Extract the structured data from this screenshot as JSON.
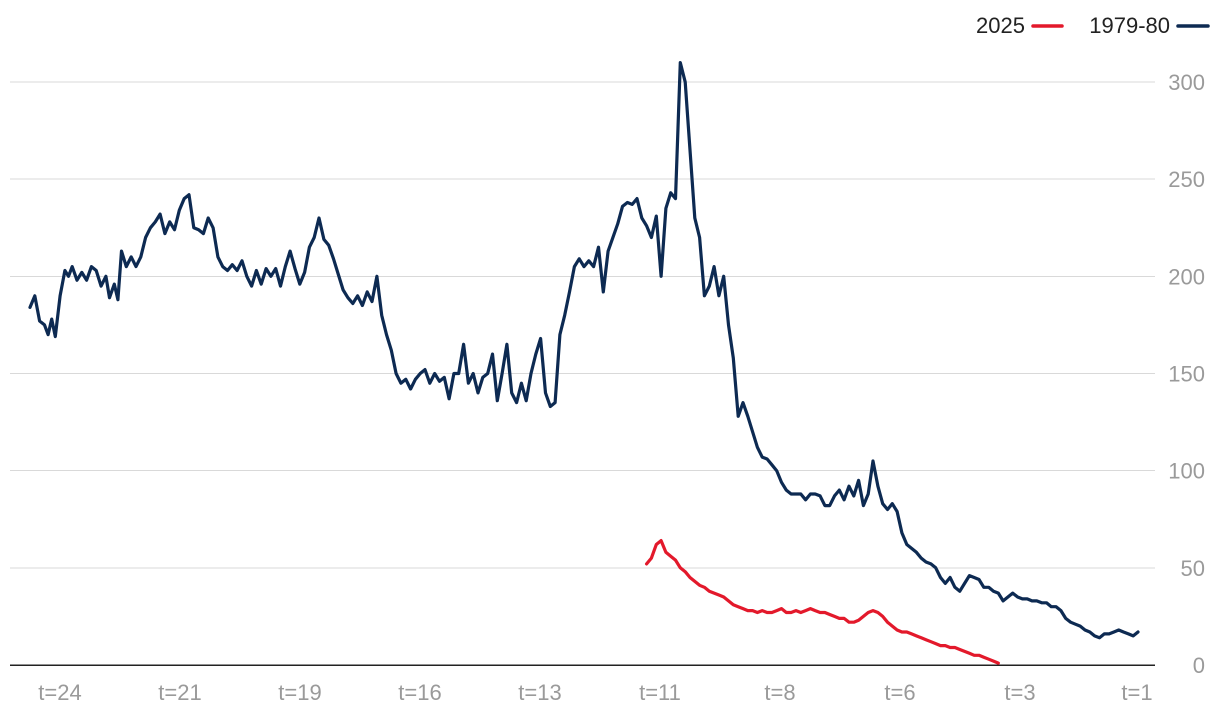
{
  "chart_data": {
    "type": "line",
    "title": "",
    "xlabel": "",
    "ylabel": "",
    "ylim": [
      0,
      300
    ],
    "yticks": [
      0,
      50,
      100,
      150,
      200,
      250,
      300
    ],
    "xticks": [
      "t=24",
      "t=21",
      "t=19",
      "t=16",
      "t=13",
      "t=11",
      "t=8",
      "t=6",
      "t=3",
      "t=1"
    ],
    "grid": "horizontal",
    "legend_position": "top-right",
    "x_note": "x values are indices from 0 (t=24) to 92 (t=1)",
    "series": [
      {
        "name": "1979-80",
        "color": "#0d2a52",
        "points": [
          [
            0,
            184
          ],
          [
            0.4,
            190
          ],
          [
            0.8,
            177
          ],
          [
            1.2,
            175
          ],
          [
            1.5,
            170
          ],
          [
            1.8,
            178
          ],
          [
            2.1,
            169
          ],
          [
            2.5,
            190
          ],
          [
            2.9,
            203
          ],
          [
            3.2,
            200
          ],
          [
            3.5,
            205
          ],
          [
            3.9,
            198
          ],
          [
            4.3,
            202
          ],
          [
            4.7,
            198
          ],
          [
            5.1,
            205
          ],
          [
            5.5,
            203
          ],
          [
            5.9,
            195
          ],
          [
            6.3,
            200
          ],
          [
            6.6,
            189
          ],
          [
            7.0,
            196
          ],
          [
            7.3,
            188
          ],
          [
            7.6,
            213
          ],
          [
            8.0,
            205
          ],
          [
            8.4,
            210
          ],
          [
            8.8,
            205
          ],
          [
            9.2,
            210
          ],
          [
            9.6,
            220
          ],
          [
            10.0,
            225
          ],
          [
            10.4,
            228
          ],
          [
            10.8,
            232
          ],
          [
            11.2,
            222
          ],
          [
            11.6,
            228
          ],
          [
            12.0,
            224
          ],
          [
            12.4,
            234
          ],
          [
            12.8,
            240
          ],
          [
            13.2,
            242
          ],
          [
            13.6,
            225
          ],
          [
            14.0,
            224
          ],
          [
            14.4,
            222
          ],
          [
            14.8,
            230
          ],
          [
            15.2,
            225
          ],
          [
            15.6,
            210
          ],
          [
            16.0,
            205
          ],
          [
            16.4,
            203
          ],
          [
            16.8,
            206
          ],
          [
            17.2,
            203
          ],
          [
            17.6,
            208
          ],
          [
            18.0,
            200
          ],
          [
            18.4,
            195
          ],
          [
            18.8,
            203
          ],
          [
            19.2,
            196
          ],
          [
            19.6,
            204
          ],
          [
            20.0,
            200
          ],
          [
            20.4,
            204
          ],
          [
            20.8,
            195
          ],
          [
            21.2,
            205
          ],
          [
            21.6,
            213
          ],
          [
            22.0,
            204
          ],
          [
            22.4,
            196
          ],
          [
            22.8,
            202
          ],
          [
            23.2,
            215
          ],
          [
            23.6,
            220
          ],
          [
            24.0,
            230
          ],
          [
            24.4,
            219
          ],
          [
            24.8,
            216
          ],
          [
            25.2,
            209
          ],
          [
            25.6,
            201
          ],
          [
            26.0,
            193
          ],
          [
            26.4,
            189
          ],
          [
            26.8,
            186
          ],
          [
            27.2,
            190
          ],
          [
            27.6,
            185
          ],
          [
            28.0,
            192
          ],
          [
            28.4,
            187
          ],
          [
            28.8,
            200
          ],
          [
            29.2,
            180
          ],
          [
            29.6,
            170
          ],
          [
            30.0,
            162
          ],
          [
            30.4,
            150
          ],
          [
            30.8,
            145
          ],
          [
            31.2,
            147
          ],
          [
            31.6,
            142
          ],
          [
            32.0,
            147
          ],
          [
            32.4,
            150
          ],
          [
            32.8,
            152
          ],
          [
            33.2,
            145
          ],
          [
            33.6,
            150
          ],
          [
            34.0,
            146
          ],
          [
            34.4,
            148
          ],
          [
            34.8,
            137
          ],
          [
            35.2,
            150
          ],
          [
            35.6,
            150
          ],
          [
            36.0,
            165
          ],
          [
            36.4,
            145
          ],
          [
            36.8,
            150
          ],
          [
            37.2,
            140
          ],
          [
            37.6,
            148
          ],
          [
            38.0,
            150
          ],
          [
            38.4,
            160
          ],
          [
            38.8,
            136
          ],
          [
            39.2,
            150
          ],
          [
            39.6,
            165
          ],
          [
            40.0,
            140
          ],
          [
            40.4,
            135
          ],
          [
            40.8,
            145
          ],
          [
            41.2,
            136
          ],
          [
            41.6,
            150
          ],
          [
            42.0,
            160
          ],
          [
            42.4,
            168
          ],
          [
            42.8,
            140
          ],
          [
            43.2,
            133
          ],
          [
            43.6,
            135
          ],
          [
            44.0,
            170
          ],
          [
            44.4,
            180
          ],
          [
            44.8,
            192
          ],
          [
            45.2,
            205
          ],
          [
            45.6,
            209
          ],
          [
            46.0,
            205
          ],
          [
            46.4,
            208
          ],
          [
            46.8,
            205
          ],
          [
            47.2,
            215
          ],
          [
            47.6,
            192
          ],
          [
            48.0,
            213
          ],
          [
            48.4,
            220
          ],
          [
            48.8,
            227
          ],
          [
            49.2,
            236
          ],
          [
            49.6,
            238
          ],
          [
            50.0,
            237
          ],
          [
            50.4,
            240
          ],
          [
            50.8,
            230
          ],
          [
            51.2,
            226
          ],
          [
            51.6,
            220
          ],
          [
            52.0,
            231
          ],
          [
            52.4,
            200
          ],
          [
            52.8,
            235
          ],
          [
            53.2,
            243
          ],
          [
            53.6,
            240
          ],
          [
            54.0,
            310
          ],
          [
            54.4,
            300
          ],
          [
            54.8,
            265
          ],
          [
            55.2,
            230
          ],
          [
            55.6,
            220
          ],
          [
            56.0,
            190
          ],
          [
            56.4,
            195
          ],
          [
            56.8,
            205
          ],
          [
            57.2,
            190
          ],
          [
            57.6,
            200
          ],
          [
            58.0,
            175
          ],
          [
            58.4,
            158
          ],
          [
            58.8,
            128
          ],
          [
            59.2,
            135
          ],
          [
            59.6,
            128
          ],
          [
            60.0,
            120
          ],
          [
            60.4,
            112
          ],
          [
            60.8,
            107
          ],
          [
            61.2,
            106
          ],
          [
            61.6,
            103
          ],
          [
            62.0,
            100
          ],
          [
            62.4,
            94
          ],
          [
            62.8,
            90
          ],
          [
            63.2,
            88
          ],
          [
            63.6,
            88
          ],
          [
            64.0,
            88
          ],
          [
            64.4,
            85
          ],
          [
            64.8,
            88
          ],
          [
            65.2,
            88
          ],
          [
            65.6,
            87
          ],
          [
            66.0,
            82
          ],
          [
            66.4,
            82
          ],
          [
            66.8,
            87
          ],
          [
            67.2,
            90
          ],
          [
            67.6,
            85
          ],
          [
            68.0,
            92
          ],
          [
            68.4,
            87
          ],
          [
            68.8,
            95
          ],
          [
            69.2,
            82
          ],
          [
            69.6,
            88
          ],
          [
            70.0,
            105
          ],
          [
            70.4,
            92
          ],
          [
            70.8,
            83
          ],
          [
            71.2,
            80
          ],
          [
            71.6,
            83
          ],
          [
            72.0,
            79
          ],
          [
            72.4,
            68
          ],
          [
            72.8,
            62
          ],
          [
            73.2,
            60
          ],
          [
            73.6,
            58
          ],
          [
            74.0,
            55
          ],
          [
            74.4,
            53
          ],
          [
            74.8,
            52
          ],
          [
            75.2,
            50
          ],
          [
            75.6,
            45
          ],
          [
            76.0,
            42
          ],
          [
            76.4,
            45
          ],
          [
            76.8,
            40
          ],
          [
            77.2,
            38
          ],
          [
            77.6,
            42
          ],
          [
            78.0,
            46
          ],
          [
            78.4,
            45
          ],
          [
            78.8,
            44
          ],
          [
            79.2,
            40
          ],
          [
            79.6,
            40
          ],
          [
            80.0,
            38
          ],
          [
            80.4,
            37
          ],
          [
            80.8,
            33
          ],
          [
            81.2,
            35
          ],
          [
            81.6,
            37
          ],
          [
            82.0,
            35
          ],
          [
            82.4,
            34
          ],
          [
            82.8,
            34
          ],
          [
            83.2,
            33
          ],
          [
            83.6,
            33
          ],
          [
            84.0,
            32
          ],
          [
            84.4,
            32
          ],
          [
            84.8,
            30
          ],
          [
            85.2,
            30
          ],
          [
            85.6,
            28
          ],
          [
            86.0,
            24
          ],
          [
            86.4,
            22
          ],
          [
            86.8,
            21
          ],
          [
            87.2,
            20
          ],
          [
            87.6,
            18
          ],
          [
            88.0,
            17
          ],
          [
            88.4,
            15
          ],
          [
            88.8,
            14
          ],
          [
            89.2,
            16
          ],
          [
            89.6,
            16
          ],
          [
            90.0,
            17
          ],
          [
            90.4,
            18
          ],
          [
            90.8,
            17
          ],
          [
            91.2,
            16
          ],
          [
            91.6,
            15
          ],
          [
            92.0,
            17
          ]
        ]
      },
      {
        "name": "2025",
        "color": "#e3192b",
        "points": [
          [
            51.2,
            52
          ],
          [
            51.6,
            55
          ],
          [
            52.0,
            62
          ],
          [
            52.4,
            64
          ],
          [
            52.8,
            58
          ],
          [
            53.2,
            56
          ],
          [
            53.6,
            54
          ],
          [
            54.0,
            50
          ],
          [
            54.4,
            48
          ],
          [
            54.8,
            45
          ],
          [
            55.2,
            43
          ],
          [
            55.6,
            41
          ],
          [
            56.0,
            40
          ],
          [
            56.4,
            38
          ],
          [
            56.8,
            37
          ],
          [
            57.2,
            36
          ],
          [
            57.6,
            35
          ],
          [
            58.0,
            33
          ],
          [
            58.4,
            31
          ],
          [
            58.8,
            30
          ],
          [
            59.2,
            29
          ],
          [
            59.6,
            28
          ],
          [
            60.0,
            28
          ],
          [
            60.4,
            27
          ],
          [
            60.8,
            28
          ],
          [
            61.2,
            27
          ],
          [
            61.6,
            27
          ],
          [
            62.0,
            28
          ],
          [
            62.4,
            29
          ],
          [
            62.8,
            27
          ],
          [
            63.2,
            27
          ],
          [
            63.6,
            28
          ],
          [
            64.0,
            27
          ],
          [
            64.4,
            28
          ],
          [
            64.8,
            29
          ],
          [
            65.2,
            28
          ],
          [
            65.6,
            27
          ],
          [
            66.0,
            27
          ],
          [
            66.4,
            26
          ],
          [
            66.8,
            25
          ],
          [
            67.2,
            24
          ],
          [
            67.6,
            24
          ],
          [
            68.0,
            22
          ],
          [
            68.4,
            22
          ],
          [
            68.8,
            23
          ],
          [
            69.2,
            25
          ],
          [
            69.6,
            27
          ],
          [
            70.0,
            28
          ],
          [
            70.4,
            27
          ],
          [
            70.8,
            25
          ],
          [
            71.2,
            22
          ],
          [
            71.6,
            20
          ],
          [
            72.0,
            18
          ],
          [
            72.4,
            17
          ],
          [
            72.8,
            17
          ],
          [
            73.2,
            16
          ],
          [
            73.6,
            15
          ],
          [
            74.0,
            14
          ],
          [
            74.4,
            13
          ],
          [
            74.8,
            12
          ],
          [
            75.2,
            11
          ],
          [
            75.6,
            10
          ],
          [
            76.0,
            10
          ],
          [
            76.4,
            9
          ],
          [
            76.8,
            9
          ],
          [
            77.2,
            8
          ],
          [
            77.6,
            7
          ],
          [
            78.0,
            6
          ],
          [
            78.4,
            5
          ],
          [
            78.8,
            5
          ],
          [
            79.2,
            4
          ],
          [
            79.6,
            3
          ],
          [
            80.0,
            2
          ],
          [
            80.4,
            1
          ]
        ]
      }
    ]
  },
  "legend": {
    "items": [
      {
        "label": "2025",
        "color": "#e3192b"
      },
      {
        "label": "1979-80",
        "color": "#0d2a52"
      }
    ]
  }
}
